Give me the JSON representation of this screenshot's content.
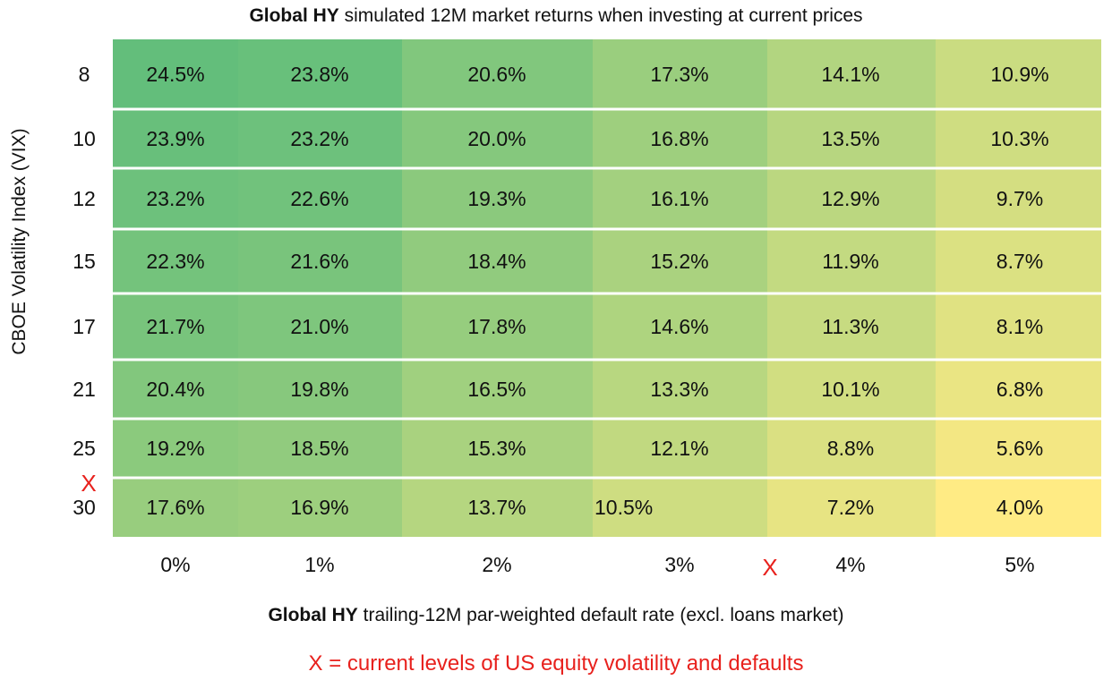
{
  "chart_data": {
    "type": "heatmap",
    "title_bold": "Global HY",
    "title_rest": " simulated 12M market returns when investing at current prices",
    "xlabel_bold": "Global HY",
    "xlabel_rest": " trailing-12M par-weighted default rate (excl. loans market)",
    "ylabel": "CBOE Volatility Index (VIX)",
    "x_categories": [
      "0%",
      "1%",
      "2%",
      "3%",
      "4%",
      "5%"
    ],
    "y_categories": [
      "8",
      "10",
      "12",
      "15",
      "17",
      "21",
      "25",
      "30"
    ],
    "values": [
      [
        24.5,
        23.8,
        20.6,
        17.3,
        14.1,
        10.9
      ],
      [
        23.9,
        23.2,
        20.0,
        16.8,
        13.5,
        10.3
      ],
      [
        23.2,
        22.6,
        19.3,
        16.1,
        12.9,
        9.7
      ],
      [
        22.3,
        21.6,
        18.4,
        15.2,
        11.9,
        8.7
      ],
      [
        21.7,
        21.0,
        17.8,
        14.6,
        11.3,
        8.1
      ],
      [
        20.4,
        19.8,
        16.5,
        13.3,
        10.1,
        6.8
      ],
      [
        19.2,
        18.5,
        15.3,
        12.1,
        8.8,
        5.6
      ],
      [
        17.6,
        16.9,
        13.7,
        10.5,
        7.2,
        4.0
      ]
    ],
    "value_labels": [
      [
        "24.5%",
        "23.8%",
        "20.6%",
        "17.3%",
        "14.1%",
        "10.9%"
      ],
      [
        "23.9%",
        "23.2%",
        "20.0%",
        "16.8%",
        "13.5%",
        "10.3%"
      ],
      [
        "23.2%",
        "22.6%",
        "19.3%",
        "16.1%",
        "12.9%",
        "9.7%"
      ],
      [
        "22.3%",
        "21.6%",
        "18.4%",
        "15.2%",
        "11.9%",
        "8.7%"
      ],
      [
        "21.7%",
        "21.0%",
        "17.8%",
        "14.6%",
        "11.3%",
        "8.1%"
      ],
      [
        "20.4%",
        "19.8%",
        "16.5%",
        "13.3%",
        "10.1%",
        "6.8%"
      ],
      [
        "19.2%",
        "18.5%",
        "15.3%",
        "12.1%",
        "8.8%",
        "5.6%"
      ],
      [
        "17.6%",
        "16.9%",
        "13.7%",
        "10.5%",
        "7.2%",
        "4.0%"
      ]
    ],
    "color_scale": {
      "high": "#63be7b",
      "low": "#ffeb84"
    },
    "current_markers": {
      "symbol": "X",
      "vix_near": "30",
      "default_rate_near": "3%–4%",
      "color": "#e8211d"
    },
    "legend_text": "X = current levels of US equity volatility and defaults",
    "grid": "white row separators"
  }
}
